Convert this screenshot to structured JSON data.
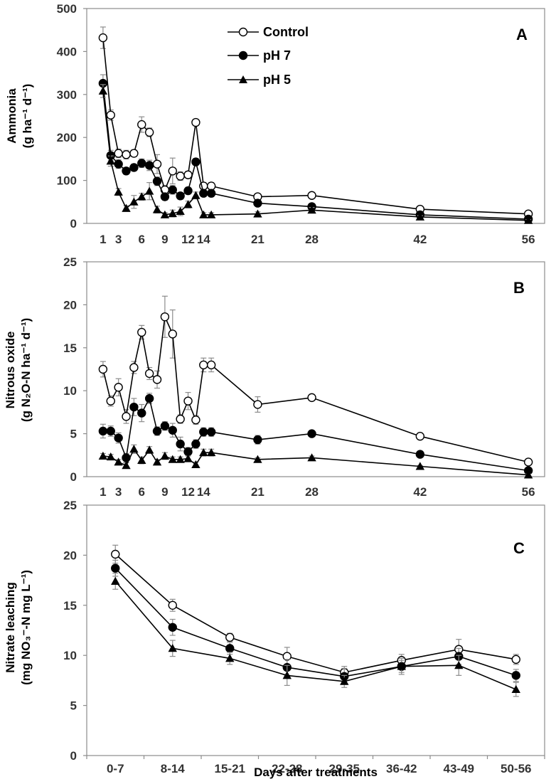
{
  "figure": {
    "x_axis_label": "Days after treatments",
    "legend": {
      "entries": [
        {
          "name": "Control",
          "marker": "circle-open"
        },
        {
          "name": "pH 7",
          "marker": "circle-filled"
        },
        {
          "name": "pH 5",
          "marker": "triangle-filled"
        }
      ]
    },
    "colors": {
      "series": "#000000",
      "axis": "#8c8c8c",
      "error_bar": "#8c8c8c",
      "tick_text": "#333333"
    }
  },
  "chart_data": [
    {
      "panel": "A",
      "type": "line",
      "ylabel_line1": "Ammonia",
      "ylabel_line2": "(g ha⁻¹ d⁻¹)",
      "ylim": [
        0,
        500
      ],
      "yticks": [
        0,
        100,
        200,
        300,
        400,
        500
      ],
      "xlim": [
        0,
        57
      ],
      "xtick_values": [
        1,
        3,
        6,
        9,
        12,
        14,
        21,
        28,
        42,
        56
      ],
      "xtick_labels": [
        "1",
        "3",
        "6",
        "9",
        "12",
        "14",
        "21",
        "28",
        "42",
        "56"
      ],
      "series": [
        {
          "name": "Control",
          "marker": "circle-open",
          "x": [
            1,
            2,
            3,
            4,
            5,
            6,
            7,
            8,
            9,
            10,
            11,
            12,
            13,
            14,
            15,
            21,
            28,
            42,
            56
          ],
          "y": [
            432,
            252,
            163,
            160,
            163,
            230,
            212,
            138,
            78,
            122,
            110,
            113,
            235,
            87,
            87,
            62,
            65,
            33,
            22
          ],
          "err": [
            25,
            12,
            10,
            10,
            8,
            18,
            10,
            22,
            10,
            30,
            10,
            8,
            5,
            8,
            8,
            5,
            5,
            4,
            3
          ]
        },
        {
          "name": "pH 7",
          "marker": "circle-filled",
          "x": [
            1,
            2,
            3,
            4,
            5,
            6,
            7,
            8,
            9,
            10,
            11,
            12,
            13,
            14,
            15,
            21,
            28,
            42,
            56
          ],
          "y": [
            326,
            158,
            138,
            122,
            130,
            140,
            135,
            98,
            62,
            78,
            64,
            76,
            143,
            70,
            70,
            47,
            39,
            20,
            10
          ],
          "err": [
            20,
            12,
            10,
            8,
            8,
            10,
            12,
            10,
            8,
            10,
            8,
            8,
            8,
            8,
            8,
            5,
            5,
            3,
            2
          ]
        },
        {
          "name": "pH 5",
          "marker": "triangle-filled",
          "x": [
            1,
            2,
            3,
            4,
            5,
            6,
            7,
            8,
            9,
            10,
            11,
            12,
            13,
            14,
            15,
            21,
            28,
            42,
            56
          ],
          "y": [
            308,
            145,
            73,
            35,
            50,
            62,
            75,
            32,
            20,
            23,
            28,
            44,
            65,
            20,
            20,
            22,
            31,
            15,
            7
          ],
          "err": [
            15,
            12,
            8,
            6,
            15,
            8,
            20,
            8,
            5,
            8,
            10,
            8,
            8,
            5,
            5,
            5,
            6,
            3,
            2
          ]
        }
      ]
    },
    {
      "panel": "B",
      "type": "line",
      "ylabel_line1": "Nitrous oxide",
      "ylabel_line2": "(g N₂O-N ha⁻¹ d⁻¹)",
      "ylim": [
        0,
        25
      ],
      "yticks": [
        0,
        5,
        10,
        15,
        20,
        25
      ],
      "xlim": [
        0,
        57
      ],
      "xtick_values": [
        1,
        3,
        6,
        9,
        12,
        14,
        21,
        28,
        42,
        56
      ],
      "xtick_labels": [
        "1",
        "3",
        "6",
        "9",
        "12",
        "14",
        "21",
        "28",
        "42",
        "56"
      ],
      "series": [
        {
          "name": "Control",
          "marker": "circle-open",
          "x": [
            1,
            2,
            3,
            4,
            5,
            6,
            7,
            8,
            9,
            10,
            11,
            12,
            13,
            14,
            15,
            21,
            28,
            42,
            56
          ],
          "y": [
            12.5,
            8.8,
            10.4,
            7.0,
            12.7,
            16.8,
            12.0,
            11.3,
            18.6,
            16.6,
            6.7,
            8.8,
            6.6,
            13.0,
            13.0,
            8.4,
            9.2,
            4.7,
            1.7
          ],
          "err": [
            0.9,
            0.6,
            1.0,
            0.8,
            0.7,
            0.8,
            0.7,
            1.0,
            2.4,
            2.8,
            0.5,
            1.0,
            0.5,
            0.8,
            0.8,
            0.9,
            0.3,
            0.2,
            0.2
          ]
        },
        {
          "name": "pH 7",
          "marker": "circle-filled",
          "x": [
            1,
            2,
            3,
            4,
            5,
            6,
            7,
            8,
            9,
            10,
            11,
            12,
            13,
            14,
            15,
            21,
            28,
            42,
            56
          ],
          "y": [
            5.3,
            5.3,
            4.5,
            2.2,
            8.1,
            7.4,
            9.1,
            5.3,
            5.9,
            5.4,
            3.8,
            2.9,
            3.8,
            5.2,
            5.2,
            4.3,
            5.0,
            2.6,
            0.7
          ],
          "err": [
            0.8,
            0.6,
            0.6,
            0.5,
            1.0,
            1.0,
            0.6,
            0.5,
            0.5,
            0.8,
            0.8,
            0.5,
            0.5,
            0.5,
            0.5,
            0.5,
            0.2,
            0.2,
            0.3
          ]
        },
        {
          "name": "pH 5",
          "marker": "triangle-filled",
          "x": [
            1,
            2,
            3,
            4,
            5,
            6,
            7,
            8,
            9,
            10,
            11,
            12,
            13,
            14,
            15,
            21,
            28,
            42,
            56
          ],
          "y": [
            2.4,
            2.3,
            1.7,
            1.3,
            3.2,
            1.9,
            3.1,
            1.7,
            2.4,
            2.0,
            2.0,
            2.1,
            1.4,
            2.8,
            2.8,
            2.0,
            2.2,
            1.2,
            0.2
          ],
          "err": [
            0.3,
            0.3,
            0.3,
            0.3,
            0.5,
            0.4,
            0.4,
            0.3,
            0.4,
            0.3,
            0.3,
            0.3,
            0.3,
            0.4,
            0.4,
            0.2,
            0.2,
            0.1,
            0.1
          ]
        }
      ]
    },
    {
      "panel": "C",
      "type": "line",
      "ylabel_line1": "Nitrate leaching",
      "ylabel_line2": "(mg NO₃⁻-N mg L⁻¹)",
      "ylim": [
        0,
        25
      ],
      "yticks": [
        0,
        5,
        10,
        15,
        20,
        25
      ],
      "categories": [
        "0-7",
        "8-14",
        "15-21",
        "22-28",
        "29-35",
        "36-42",
        "43-49",
        "50-56"
      ],
      "series": [
        {
          "name": "Control",
          "marker": "circle-open",
          "y": [
            20.1,
            15.0,
            11.8,
            9.9,
            8.3,
            9.5,
            10.6,
            9.6
          ],
          "err": [
            0.9,
            0.6,
            0.4,
            0.9,
            0.6,
            0.6,
            1.0,
            0.5
          ]
        },
        {
          "name": "pH 7",
          "marker": "circle-filled",
          "y": [
            18.7,
            12.8,
            10.7,
            8.8,
            7.9,
            8.9,
            9.9,
            8.0
          ],
          "err": [
            0.8,
            0.8,
            0.6,
            0.8,
            0.8,
            0.6,
            0.8,
            0.6
          ]
        },
        {
          "name": "pH 5",
          "marker": "triangle-filled",
          "y": [
            17.4,
            10.7,
            9.7,
            8.0,
            7.4,
            8.9,
            9.0,
            6.6
          ],
          "err": [
            0.8,
            0.8,
            0.6,
            1.0,
            0.6,
            0.8,
            1.0,
            0.7
          ]
        }
      ]
    }
  ]
}
